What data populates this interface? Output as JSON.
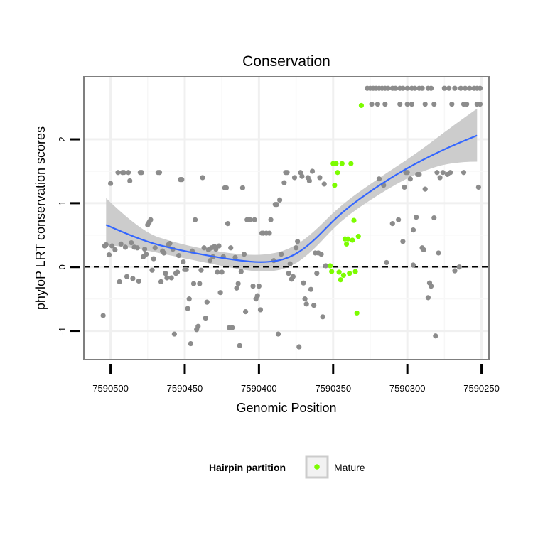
{
  "chart_data": {
    "type": "scatter",
    "title": "Conservation",
    "xlabel": "Genomic Position",
    "ylabel": "phyloP LRT conservation scores",
    "x_reversed": true,
    "xlim": [
      7590518,
      7590245
    ],
    "ylim": [
      -1.45,
      2.98
    ],
    "x_ticks": [
      7590500,
      7590450,
      7590400,
      7590350,
      7590300,
      7590250
    ],
    "y_ticks": [
      -1,
      0,
      1,
      2
    ],
    "grid": true,
    "reference_line": {
      "y": 0,
      "style": "dashed"
    },
    "legend": {
      "title": "Hairpin partition",
      "placement": "bottom",
      "entries": [
        {
          "name": "Mature",
          "color": "#7CFC00"
        }
      ]
    },
    "colors": {
      "points": "#8c8c8c",
      "mature": "#7CFC00",
      "smooth": "#3366FF",
      "ribbon": "#cccccc",
      "panel_border": "#7f7f7f"
    },
    "smooth": {
      "x": [
        7590503,
        7590480,
        7590455,
        7590430,
        7590410,
        7590395,
        7590380,
        7590365,
        7590345,
        7590320,
        7590295,
        7590270,
        7590253
      ],
      "y": [
        0.66,
        0.42,
        0.27,
        0.16,
        0.09,
        0.07,
        0.13,
        0.36,
        0.85,
        1.27,
        1.62,
        1.9,
        2.06
      ],
      "lower": [
        0.35,
        0.28,
        0.16,
        0.04,
        -0.05,
        -0.08,
        -0.02,
        0.22,
        0.73,
        1.13,
        1.46,
        1.65,
        1.65
      ],
      "upper": [
        1.08,
        0.56,
        0.37,
        0.25,
        0.19,
        0.19,
        0.27,
        0.5,
        0.97,
        1.38,
        1.76,
        2.2,
        2.48
      ]
    },
    "series": [
      {
        "name": "",
        "color": "#8c8c8c",
        "points": [
          [
            7590505,
            -0.76
          ],
          [
            7590504,
            0.33
          ],
          [
            7590503,
            0.35
          ],
          [
            7590500,
            1.31
          ],
          [
            7590501,
            0.19
          ],
          [
            7590499,
            0.33
          ],
          [
            7590497,
            0.27
          ],
          [
            7590495,
            1.48
          ],
          [
            7590494,
            -0.23
          ],
          [
            7590493,
            0.36
          ],
          [
            7590492,
            1.48
          ],
          [
            7590491,
            1.48
          ],
          [
            7590490,
            0.31
          ],
          [
            7590489,
            -0.15
          ],
          [
            7590488,
            1.48
          ],
          [
            7590487,
            1.35
          ],
          [
            7590486,
            0.38
          ],
          [
            7590485,
            -0.18
          ],
          [
            7590484,
            0.31
          ],
          [
            7590482,
            0.3
          ],
          [
            7590481,
            -0.22
          ],
          [
            7590480,
            1.48
          ],
          [
            7590479,
            1.48
          ],
          [
            7590478,
            0.16
          ],
          [
            7590477,
            0.28
          ],
          [
            7590476,
            0.2
          ],
          [
            7590475,
            0.66
          ],
          [
            7590474,
            0.7
          ],
          [
            7590473,
            0.74
          ],
          [
            7590472,
            -0.05
          ],
          [
            7590471,
            0.13
          ],
          [
            7590470,
            0.3
          ],
          [
            7590468,
            1.48
          ],
          [
            7590467,
            1.48
          ],
          [
            7590466,
            -0.23
          ],
          [
            7590465,
            0.25
          ],
          [
            7590464,
            0.22
          ],
          [
            7590463,
            -0.1
          ],
          [
            7590462,
            -0.17
          ],
          [
            7590461,
            0.35
          ],
          [
            7590460,
            0.37
          ],
          [
            7590459,
            -0.17
          ],
          [
            7590458,
            0.28
          ],
          [
            7590457,
            -1.05
          ],
          [
            7590456,
            -0.1
          ],
          [
            7590455,
            -0.08
          ],
          [
            7590454,
            0.18
          ],
          [
            7590453,
            1.37
          ],
          [
            7590452,
            1.37
          ],
          [
            7590451,
            0.08
          ],
          [
            7590450,
            -0.04
          ],
          [
            7590449,
            -0.04
          ],
          [
            7590448,
            -0.65
          ],
          [
            7590447,
            -0.5
          ],
          [
            7590446,
            -1.2
          ],
          [
            7590445,
            0.25
          ],
          [
            7590444,
            -0.26
          ],
          [
            7590443,
            0.74
          ],
          [
            7590442,
            -0.98
          ],
          [
            7590441,
            -0.93
          ],
          [
            7590440,
            -0.26
          ],
          [
            7590439,
            -0.05
          ],
          [
            7590438,
            1.4
          ],
          [
            7590437,
            0.3
          ],
          [
            7590436,
            -0.8
          ],
          [
            7590435,
            -0.55
          ],
          [
            7590434,
            0.27
          ],
          [
            7590433,
            0.1
          ],
          [
            7590432,
            0.3
          ],
          [
            7590431,
            0.16
          ],
          [
            7590430,
            0.32
          ],
          [
            7590429,
            0.28
          ],
          [
            7590428,
            -0.08
          ],
          [
            7590427,
            0.33
          ],
          [
            7590426,
            -0.4
          ],
          [
            7590425,
            -0.08
          ],
          [
            7590424,
            0.16
          ],
          [
            7590423,
            1.24
          ],
          [
            7590422,
            1.24
          ],
          [
            7590421,
            0.68
          ],
          [
            7590420,
            -0.95
          ],
          [
            7590419,
            0.3
          ],
          [
            7590418,
            -0.95
          ],
          [
            7590416,
            0.15
          ],
          [
            7590415,
            -0.33
          ],
          [
            7590414,
            -0.26
          ],
          [
            7590413,
            -1.23
          ],
          [
            7590412,
            -0.07
          ],
          [
            7590411,
            1.24
          ],
          [
            7590410,
            0.2
          ],
          [
            7590409,
            -0.7
          ],
          [
            7590408,
            0.74
          ],
          [
            7590407,
            0.74
          ],
          [
            7590406,
            0.74
          ],
          [
            7590404,
            -0.3
          ],
          [
            7590403,
            0.74
          ],
          [
            7590402,
            -0.5
          ],
          [
            7590401,
            -0.45
          ],
          [
            7590400,
            -0.3
          ],
          [
            7590399,
            -0.67
          ],
          [
            7590398,
            0.53
          ],
          [
            7590397,
            0.53
          ],
          [
            7590395,
            0.53
          ],
          [
            7590393,
            0.53
          ],
          [
            7590392,
            0.74
          ],
          [
            7590390,
            0.1
          ],
          [
            7590389,
            0.98
          ],
          [
            7590388,
            0.98
          ],
          [
            7590387,
            -1.05
          ],
          [
            7590386,
            1.05
          ],
          [
            7590385,
            0.2
          ],
          [
            7590383,
            1.32
          ],
          [
            7590382,
            1.48
          ],
          [
            7590381,
            1.48
          ],
          [
            7590380,
            -0.1
          ],
          [
            7590379,
            0.05
          ],
          [
            7590378,
            -0.19
          ],
          [
            7590377,
            -0.15
          ],
          [
            7590376,
            1.4
          ],
          [
            7590375,
            0.3
          ],
          [
            7590374,
            0.4
          ],
          [
            7590373,
            -1.25
          ],
          [
            7590372,
            1.48
          ],
          [
            7590371,
            1.42
          ],
          [
            7590370,
            -0.25
          ],
          [
            7590369,
            -0.5
          ],
          [
            7590368,
            -0.58
          ],
          [
            7590367,
            1.4
          ],
          [
            7590366,
            1.35
          ],
          [
            7590365,
            -0.35
          ],
          [
            7590364,
            1.5
          ],
          [
            7590363,
            -0.6
          ],
          [
            7590362,
            0.22
          ],
          [
            7590361,
            -0.1
          ],
          [
            7590360,
            0.22
          ],
          [
            7590359,
            1.4
          ],
          [
            7590358,
            0.2
          ],
          [
            7590357,
            -0.78
          ],
          [
            7590356,
            1.3
          ],
          [
            7590355,
            0.02
          ],
          [
            7590327,
            2.8
          ],
          [
            7590325,
            2.8
          ],
          [
            7590323,
            2.8
          ],
          [
            7590321,
            2.8
          ],
          [
            7590319,
            2.8
          ],
          [
            7590317,
            2.8
          ],
          [
            7590315,
            2.8
          ],
          [
            7590313,
            2.8
          ],
          [
            7590310,
            2.8
          ],
          [
            7590308,
            2.8
          ],
          [
            7590305,
            2.8
          ],
          [
            7590303,
            2.8
          ],
          [
            7590300,
            2.8
          ],
          [
            7590297,
            2.8
          ],
          [
            7590295,
            2.8
          ],
          [
            7590292,
            2.8
          ],
          [
            7590290,
            2.8
          ],
          [
            7590286,
            2.8
          ],
          [
            7590284,
            2.8
          ],
          [
            7590275,
            2.8
          ],
          [
            7590272,
            2.8
          ],
          [
            7590268,
            2.8
          ],
          [
            7590264,
            2.8
          ],
          [
            7590261,
            2.8
          ],
          [
            7590258,
            2.8
          ],
          [
            7590255,
            2.8
          ],
          [
            7590253,
            2.8
          ],
          [
            7590251,
            2.8
          ],
          [
            7590324,
            2.55
          ],
          [
            7590320,
            2.55
          ],
          [
            7590315,
            2.55
          ],
          [
            7590305,
            2.55
          ],
          [
            7590300,
            2.55
          ],
          [
            7590297,
            2.55
          ],
          [
            7590288,
            2.55
          ],
          [
            7590282,
            2.55
          ],
          [
            7590270,
            2.55
          ],
          [
            7590262,
            2.55
          ],
          [
            7590260,
            2.55
          ],
          [
            7590253,
            2.55
          ],
          [
            7590251,
            2.55
          ],
          [
            7590319,
            1.38
          ],
          [
            7590316,
            1.28
          ],
          [
            7590314,
            0.07
          ],
          [
            7590310,
            0.68
          ],
          [
            7590306,
            0.74
          ],
          [
            7590303,
            0.4
          ],
          [
            7590302,
            1.25
          ],
          [
            7590301,
            1.48
          ],
          [
            7590300,
            1.48
          ],
          [
            7590298,
            1.38
          ],
          [
            7590296,
            0.58
          ],
          [
            7590294,
            0.78
          ],
          [
            7590293,
            1.45
          ],
          [
            7590292,
            1.45
          ],
          [
            7590290,
            0.3
          ],
          [
            7590289,
            0.27
          ],
          [
            7590288,
            1.22
          ],
          [
            7590286,
            -0.48
          ],
          [
            7590285,
            -0.25
          ],
          [
            7590284,
            -0.3
          ],
          [
            7590282,
            0.77
          ],
          [
            7590280,
            1.48
          ],
          [
            7590279,
            0.22
          ],
          [
            7590278,
            1.4
          ],
          [
            7590276,
            1.48
          ],
          [
            7590273,
            1.45
          ],
          [
            7590271,
            1.48
          ],
          [
            7590262,
            1.48
          ],
          [
            7590268,
            -0.06
          ],
          [
            7590265,
            0.0
          ],
          [
            7590281,
            -1.08
          ],
          [
            7590296,
            0.03
          ],
          [
            7590252,
            1.25
          ]
        ]
      },
      {
        "name": "Mature",
        "color": "#7CFC00",
        "points": [
          [
            7590352,
            0.02
          ],
          [
            7590351,
            -0.07
          ],
          [
            7590350,
            1.62
          ],
          [
            7590349,
            1.28
          ],
          [
            7590348,
            1.62
          ],
          [
            7590347,
            1.48
          ],
          [
            7590346,
            -0.08
          ],
          [
            7590345,
            -0.2
          ],
          [
            7590344,
            1.62
          ],
          [
            7590343,
            -0.13
          ],
          [
            7590342,
            0.44
          ],
          [
            7590341,
            0.36
          ],
          [
            7590340,
            0.44
          ],
          [
            7590339,
            -0.1
          ],
          [
            7590338,
            1.62
          ],
          [
            7590337,
            0.42
          ],
          [
            7590336,
            0.73
          ],
          [
            7590335,
            -0.07
          ],
          [
            7590334,
            -0.72
          ],
          [
            7590333,
            0.48
          ],
          [
            7590331,
            2.53
          ]
        ]
      }
    ]
  }
}
